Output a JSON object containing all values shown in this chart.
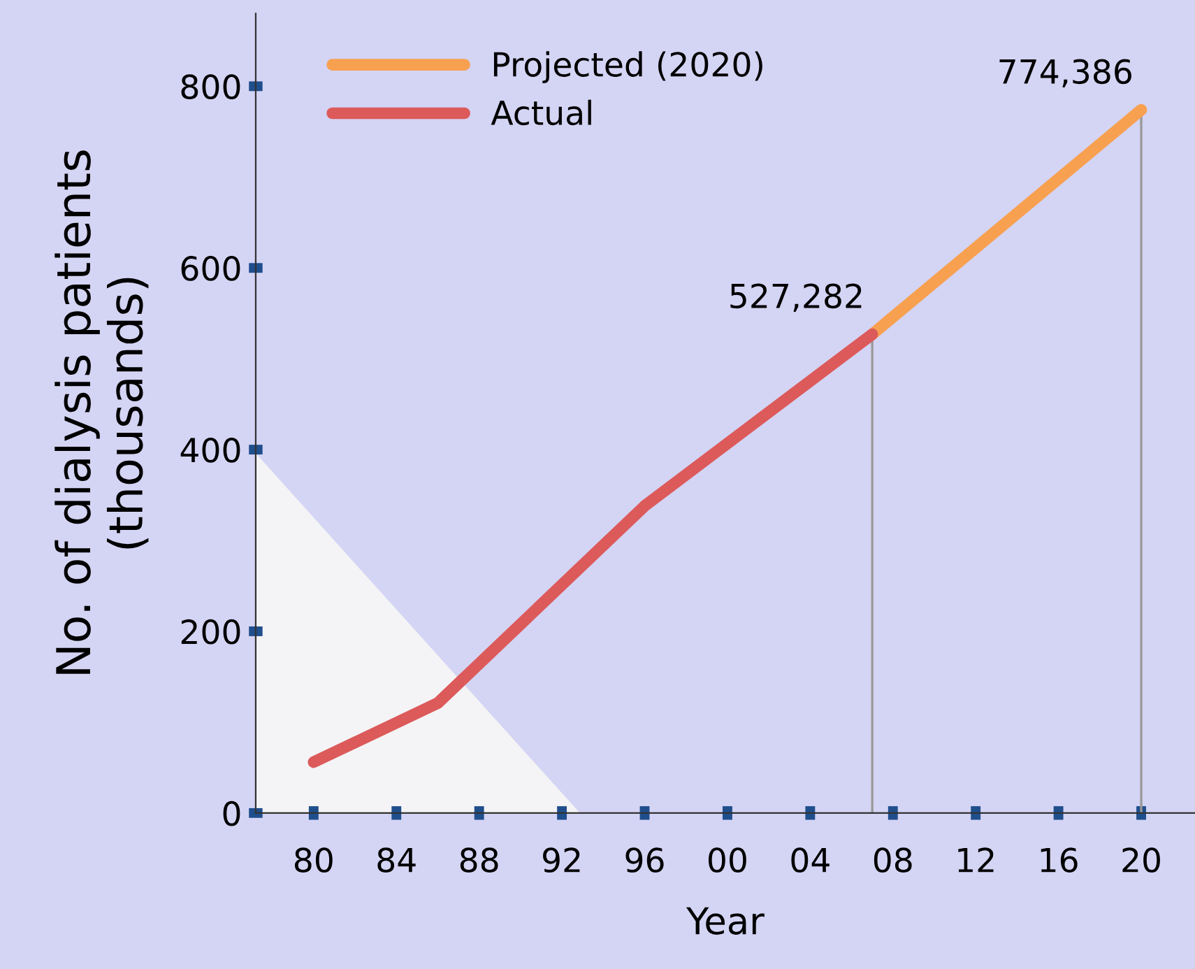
{
  "chart_data": {
    "type": "line",
    "xlabel": "Year",
    "ylabel": "No. of dialysis patients\n(thousands)",
    "series": [
      {
        "name": "Projected (2020)",
        "color": "#f7a050",
        "x": [
          2007,
          2020
        ],
        "values": [
          527,
          774
        ]
      },
      {
        "name": "Actual",
        "color": "#dc5a5a",
        "x": [
          1980,
          1986,
          1996,
          2007
        ],
        "values": [
          56,
          121,
          338,
          527
        ]
      }
    ],
    "annotations": [
      {
        "text": "527,282",
        "x": 2007,
        "y": 527
      },
      {
        "text": "774,386",
        "x": 2020,
        "y": 774
      }
    ],
    "ref_lines": [
      {
        "axis": "x",
        "value": 2007,
        "color": "#999999"
      },
      {
        "axis": "x",
        "value": 2020,
        "color": "#999999"
      }
    ],
    "xlim": [
      1977.2,
      2022.6
    ],
    "ylim": [
      0,
      880
    ],
    "xticks": [
      {
        "value": 1980,
        "label": "80"
      },
      {
        "value": 1984,
        "label": "84"
      },
      {
        "value": 1988,
        "label": "88"
      },
      {
        "value": 1992,
        "label": "92"
      },
      {
        "value": 1996,
        "label": "96"
      },
      {
        "value": 2000,
        "label": "00"
      },
      {
        "value": 2004,
        "label": "04"
      },
      {
        "value": 2008,
        "label": "08"
      },
      {
        "value": 2012,
        "label": "12"
      },
      {
        "value": 2016,
        "label": "16"
      },
      {
        "value": 2020,
        "label": "20"
      }
    ],
    "yticks": [
      0,
      200,
      400,
      600,
      800
    ],
    "grid": false,
    "legend": "top left",
    "marker": "none",
    "line_style": "solid"
  }
}
